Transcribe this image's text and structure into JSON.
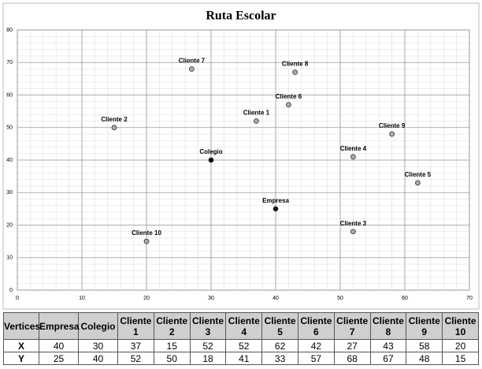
{
  "chart_data": {
    "type": "scatter",
    "title": "Ruta Escolar",
    "point_labels": [
      "Empresa",
      "Colegio",
      "Cliente 1",
      "Cliente 2",
      "Cliente 3",
      "Cliente 4",
      "Cliente 5",
      "Cliente 6",
      "Cliente 7",
      "Cliente 8",
      "Cliente 9",
      "Cliente 10"
    ],
    "x": [
      40,
      30,
      37,
      15,
      52,
      52,
      62,
      42,
      27,
      43,
      58,
      20
    ],
    "values": [
      25,
      40,
      52,
      50,
      18,
      41,
      33,
      57,
      68,
      67,
      48,
      15
    ],
    "colors": [
      "#111111",
      "#111111",
      "#aaaaaa",
      "#aaaaaa",
      "#aaaaaa",
      "#aaaaaa",
      "#aaaaaa",
      "#aaaaaa",
      "#aaaaaa",
      "#aaaaaa",
      "#aaaaaa",
      "#aaaaaa"
    ],
    "xlim": [
      0,
      70
    ],
    "xticks": [
      0,
      10,
      20,
      30,
      40,
      50,
      60,
      70
    ],
    "ylim": [
      0,
      80
    ],
    "yticks": [
      0,
      10,
      20,
      30,
      40,
      50,
      60,
      70,
      80
    ],
    "grid": true,
    "minor_grid": true
  },
  "table": {
    "corner": "Vertices",
    "row_labels": [
      "X",
      "Y"
    ]
  }
}
